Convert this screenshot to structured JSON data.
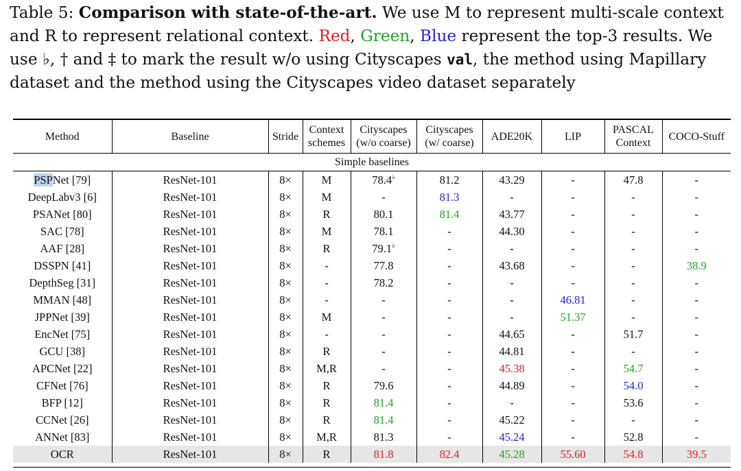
{
  "caption": {
    "label": "Table 5:",
    "title": "Comparison with state-of-the-art.",
    "text1": " We use M to represent multi-scale context and R to represent relational context. ",
    "red": "Red",
    "sep1": ", ",
    "green": "Green",
    "sep2": ", ",
    "blue": "Blue",
    "text2": " represent the top-3 results. We use ♭, † and ‡ to mark the result w/o using Cityscapes ",
    "val": "val",
    "text3": ", the method using Mapillary dataset and the method using the Cityscapes video dataset separately"
  },
  "colors": {
    "red": "#e02020",
    "green": "#1fa51f",
    "blue": "#2323d8",
    "highlight_row": "#e6e6e6",
    "selection": "#bcd4ee"
  },
  "table": {
    "headers": {
      "method": "Method",
      "baseline": "Baseline",
      "stride": "Stride",
      "context_l1": "Context",
      "context_l2": "schemes",
      "city_coarse_l1": "Cityscapes",
      "city_coarse_l2": "(w/o coarse)",
      "city_w_coarse_l1": "Cityscapes",
      "city_w_coarse_l2": "(w/ coarse)",
      "ade": "ADE20K",
      "lip": "LIP",
      "pascal_l1": "PASCAL",
      "pascal_l2": "Context",
      "coco": "COCO-Stuff"
    },
    "section": "Simple baselines",
    "rows": [
      {
        "method": "PSPNet [79]",
        "baseline": "ResNet-101",
        "stride": "8×",
        "context": "M",
        "city": "78.4",
        "city_mark": "♭",
        "city_w": "81.2",
        "ade": "43.29",
        "lip": "-",
        "pascal": "47.8",
        "coco": "-"
      },
      {
        "method": "DeepLabv3 [6]",
        "baseline": "ResNet-101",
        "stride": "8×",
        "context": "M",
        "city": "-",
        "city_w": "81.3",
        "ade": "-",
        "lip": "-",
        "pascal": "-",
        "coco": "-"
      },
      {
        "method": "PSANet [80]",
        "baseline": "ResNet-101",
        "stride": "8×",
        "context": "R",
        "city": "80.1",
        "city_w": "81.4",
        "ade": "43.77",
        "lip": "-",
        "pascal": "-",
        "coco": "-"
      },
      {
        "method": "SAC [78]",
        "baseline": "ResNet-101",
        "stride": "8×",
        "context": "M",
        "city": "78.1",
        "city_w": "-",
        "ade": "44.30",
        "lip": "-",
        "pascal": "-",
        "coco": "-"
      },
      {
        "method": "AAF [28]",
        "baseline": "ResNet-101",
        "stride": "8×",
        "context": "R",
        "city": "79.1",
        "city_mark": "♭",
        "city_w": "-",
        "ade": "-",
        "lip": "-",
        "pascal": "-",
        "coco": "-"
      },
      {
        "method": "DSSPN [41]",
        "baseline": "ResNet-101",
        "stride": "8×",
        "context": "-",
        "city": "77.8",
        "city_w": "-",
        "ade": "43.68",
        "lip": "-",
        "pascal": "-",
        "coco": "38.9"
      },
      {
        "method": "DepthSeg [31]",
        "baseline": "ResNet-101",
        "stride": "8×",
        "context": "-",
        "city": "78.2",
        "city_w": "-",
        "ade": "-",
        "lip": "-",
        "pascal": "-",
        "coco": "-"
      },
      {
        "method": "MMAN [48]",
        "baseline": "ResNet-101",
        "stride": "8×",
        "context": "-",
        "city": "-",
        "city_w": "-",
        "ade": "-",
        "lip": "46.81",
        "pascal": "-",
        "coco": "-"
      },
      {
        "method": "JPPNet [39]",
        "baseline": "ResNet-101",
        "stride": "8×",
        "context": "M",
        "city": "-",
        "city_w": "-",
        "ade": "-",
        "lip": "51.37",
        "pascal": "-",
        "coco": "-"
      },
      {
        "method": "EncNet [75]",
        "baseline": "ResNet-101",
        "stride": "8×",
        "context": "-",
        "city": "-",
        "city_w": "-",
        "ade": "44.65",
        "lip": "-",
        "pascal": "51.7",
        "coco": "-"
      },
      {
        "method": "GCU [38]",
        "baseline": "ResNet-101",
        "stride": "8×",
        "context": "R",
        "city": "-",
        "city_w": "-",
        "ade": "44.81",
        "lip": "-",
        "pascal": "-",
        "coco": "-"
      },
      {
        "method": "APCNet [22]",
        "baseline": "ResNet-101",
        "stride": "8×",
        "context": "M,R",
        "city": "-",
        "city_w": "-",
        "ade": "45.38",
        "lip": "-",
        "pascal": "54.7",
        "coco": "-"
      },
      {
        "method": "CFNet [76]",
        "baseline": "ResNet-101",
        "stride": "8×",
        "context": "R",
        "city": "79.6",
        "city_w": "-",
        "ade": "44.89",
        "lip": "-",
        "pascal": "54.0",
        "coco": "-"
      },
      {
        "method": "BFP [12]",
        "baseline": "ResNet-101",
        "stride": "8×",
        "context": "R",
        "city": "81.4",
        "city_w": "-",
        "ade": "-",
        "lip": "-",
        "pascal": "53.6",
        "coco": "-"
      },
      {
        "method": "CCNet [26]",
        "baseline": "ResNet-101",
        "stride": "8×",
        "context": "R",
        "city": "81.4",
        "city_w": "-",
        "ade": "45.22",
        "lip": "-",
        "pascal": "-",
        "coco": "-"
      },
      {
        "method": "ANNet [83]",
        "baseline": "ResNet-101",
        "stride": "8×",
        "context": "M,R",
        "city": "81.3",
        "city_w": "-",
        "ade": "45.24",
        "lip": "-",
        "pascal": "52.8",
        "coco": "-"
      },
      {
        "method": "OCR",
        "baseline": "ResNet-101",
        "stride": "8×",
        "context": "R",
        "city": "81.8",
        "city_w": "82.4",
        "ade": "45.28",
        "lip": "55.60",
        "pascal": "54.8",
        "coco": "39.5"
      }
    ],
    "colored_cells": [
      {
        "row": 1,
        "col": "city_w",
        "color": "blue"
      },
      {
        "row": 2,
        "col": "city_w",
        "color": "green"
      },
      {
        "row": 5,
        "col": "coco",
        "color": "green"
      },
      {
        "row": 7,
        "col": "lip",
        "color": "blue"
      },
      {
        "row": 8,
        "col": "lip",
        "color": "green"
      },
      {
        "row": 11,
        "col": "ade",
        "color": "red"
      },
      {
        "row": 11,
        "col": "pascal",
        "color": "green"
      },
      {
        "row": 12,
        "col": "pascal",
        "color": "blue"
      },
      {
        "row": 13,
        "col": "city",
        "color": "green"
      },
      {
        "row": 14,
        "col": "city",
        "color": "green"
      },
      {
        "row": 15,
        "col": "ade",
        "color": "blue"
      },
      {
        "row": 16,
        "col": "city",
        "color": "red"
      },
      {
        "row": 16,
        "col": "city_w",
        "color": "red"
      },
      {
        "row": 16,
        "col": "ade",
        "color": "green"
      },
      {
        "row": 16,
        "col": "lip",
        "color": "red"
      },
      {
        "row": 16,
        "col": "pascal",
        "color": "red"
      },
      {
        "row": 16,
        "col": "coco",
        "color": "red"
      }
    ]
  }
}
